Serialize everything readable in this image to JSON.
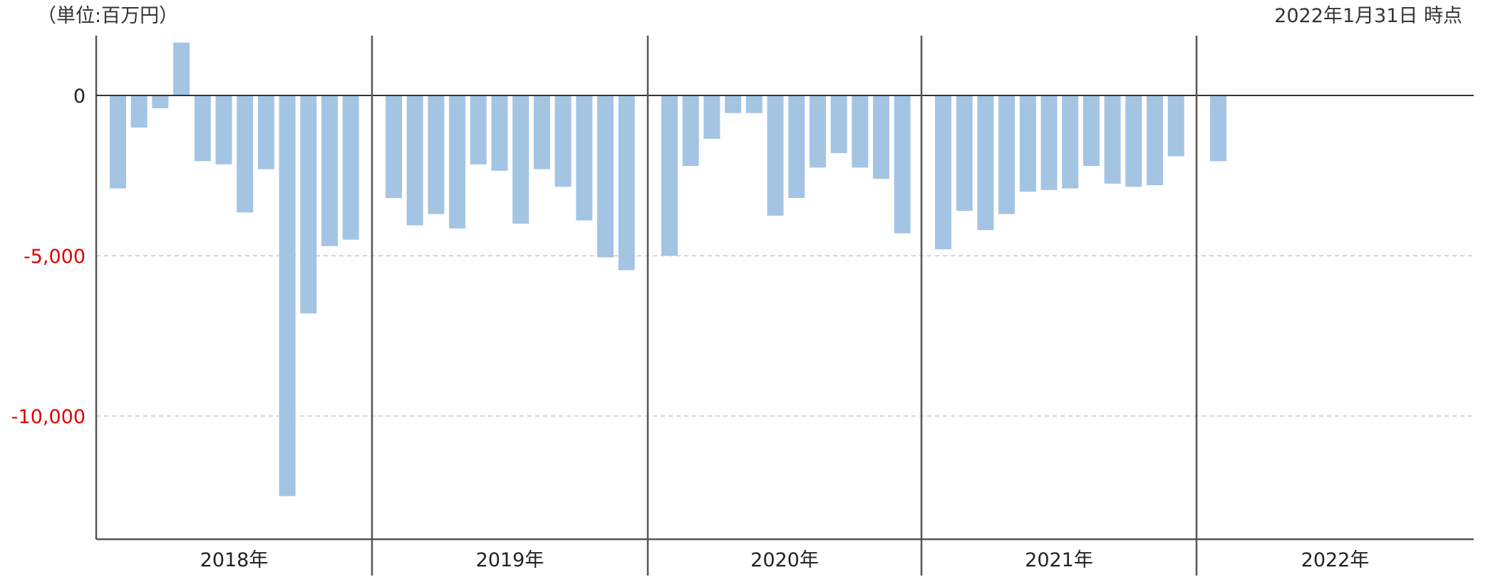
{
  "unit_label": "（単位:百万円）",
  "as_of_label": "2022年1月31日 時点",
  "colors": {
    "bar": "#a4c4e4",
    "negative_tick": "#e00000",
    "zero_tick": "#222222",
    "axis": "#555555",
    "grid": "#cccccc"
  },
  "chart_data": {
    "type": "bar",
    "ylim": [
      -13900,
      1800
    ],
    "yticks": [
      {
        "value": 0,
        "label": "0"
      },
      {
        "value": -5000,
        "label": "-5,000"
      },
      {
        "value": -10000,
        "label": "-10,000"
      }
    ],
    "grid": "dashed-horizontal",
    "groups": [
      {
        "label": "2018年",
        "values": [
          -2900,
          -1000,
          -400,
          1650,
          -2050,
          -2150,
          -3650,
          -2300,
          -12500,
          -6800,
          -4700,
          -4500
        ]
      },
      {
        "label": "2019年",
        "values": [
          -3200,
          -4050,
          -3700,
          -4150,
          -2150,
          -2350,
          -4000,
          -2300,
          -2850,
          -3900,
          -5050,
          -5450
        ]
      },
      {
        "label": "2020年",
        "values": [
          -5000,
          -2200,
          -1350,
          -550,
          -550,
          -3750,
          -3200,
          -2250,
          -1800,
          -2250,
          -2600,
          -4300
        ]
      },
      {
        "label": "2021年",
        "values": [
          -4800,
          -3600,
          -4200,
          -3700,
          -3000,
          -2950,
          -2900,
          -2200,
          -2750,
          -2850,
          -2800,
          -1900
        ]
      },
      {
        "label": "2022年",
        "values": [
          -2050
        ]
      }
    ]
  }
}
